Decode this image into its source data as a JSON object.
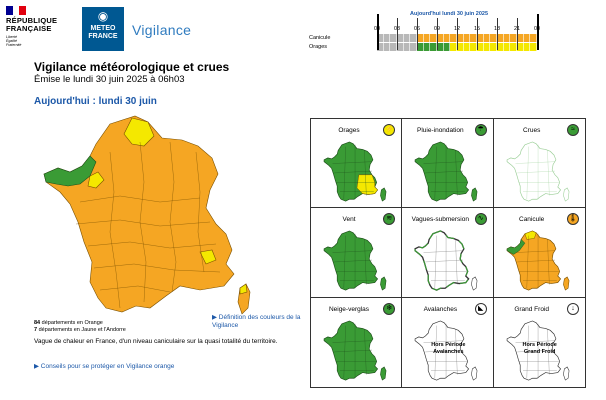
{
  "header": {
    "republique": [
      "RÉPUBLIQUE",
      "FRANÇAISE"
    ],
    "motto": [
      "Liberté",
      "Égalité",
      "Fraternité"
    ],
    "meteo_france": [
      "METEO",
      "FRANCE"
    ],
    "vigilance_logo": "Vigilance"
  },
  "timeline": {
    "title": "Aujourd'hui lundi 30 juin 2025",
    "hours": [
      "00",
      "03",
      "06",
      "09",
      "12",
      "15",
      "18",
      "21",
      "00"
    ],
    "rows": [
      {
        "label": "Canicule",
        "segments": [
          "#b8b8b8",
          "#b8b8b8",
          "#b8b8b8",
          "#b8b8b8",
          "#b8b8b8",
          "#b8b8b8",
          "#f5a623",
          "#f5a623",
          "#f5a623",
          "#f5a623",
          "#f5a623",
          "#f5a623",
          "#f5a623",
          "#f5a623",
          "#f5a623",
          "#f5a623",
          "#f5a623",
          "#f5a623",
          "#f5a623",
          "#f5a623",
          "#f5a623",
          "#f5a623",
          "#f5a623",
          "#f5a623"
        ]
      },
      {
        "label": "Orages",
        "segments": [
          "#b8b8b8",
          "#b8b8b8",
          "#b8b8b8",
          "#b8b8b8",
          "#b8b8b8",
          "#b8b8b8",
          "#3a9b35",
          "#3a9b35",
          "#3a9b35",
          "#3a9b35",
          "#3a9b35",
          "#f4e800",
          "#f4e800",
          "#f4e800",
          "#f4e800",
          "#f4e800",
          "#f4e800",
          "#f4e800",
          "#f4e800",
          "#f4e800",
          "#f4e800",
          "#f4e800",
          "#f4e800",
          "#f4e800"
        ]
      }
    ]
  },
  "title": "Vigilance météorologique et crues",
  "emission": "Émise le lundi 30 juin 2025 à 06h03",
  "today": "Aujourd'hui : lundi 30 juin",
  "counts": {
    "orange_num": "84",
    "orange_text": "départements en Orange",
    "yellow_num": "7",
    "yellow_text": "départements en Jaune et l'Andorre"
  },
  "definition_link": "▶ Définition des couleurs de la Vigilance",
  "description": "Vague de chaleur en France, d'un niveau caniculaire sur la quasi totalité du territoire.",
  "advice_link": "▶ Conseils pour se protéger en Vigilance orange",
  "phenomena": [
    {
      "label": "Orages",
      "icon_color": "#f4e800",
      "icon_glyph": "⚡",
      "map": "mixed-yellow"
    },
    {
      "label": "Pluie-inondation",
      "icon_color": "#3a9b35",
      "icon_glyph": "☂",
      "map": "green"
    },
    {
      "label": "Crues",
      "icon_color": "#3a9b35",
      "icon_glyph": "≈",
      "map": "crues"
    },
    {
      "label": "Vent",
      "icon_color": "#3a9b35",
      "icon_glyph": "≋",
      "map": "green"
    },
    {
      "label": "Vagues-submersion",
      "icon_color": "#3a9b35",
      "icon_glyph": "∿",
      "map": "white-green-coast"
    },
    {
      "label": "Canicule",
      "icon_color": "#f5a623",
      "icon_glyph": "🌡",
      "map": "orange"
    },
    {
      "label": "Neige-verglas",
      "icon_color": "#3a9b35",
      "icon_glyph": "❄",
      "map": "green"
    },
    {
      "label": "Avalanches",
      "icon_color": "#ffffff",
      "icon_glyph": "◣",
      "map": "white",
      "note": [
        "Hors Période",
        "Avalanches"
      ]
    },
    {
      "label": "Grand Froid",
      "icon_color": "#ffffff",
      "icon_glyph": "↓",
      "map": "white",
      "note": [
        "Hors Période",
        "Grand Froid"
      ]
    }
  ],
  "colors": {
    "orange": "#f5a623",
    "yellow": "#f4e800",
    "green": "#3a9b35",
    "link": "#1c58a8"
  }
}
